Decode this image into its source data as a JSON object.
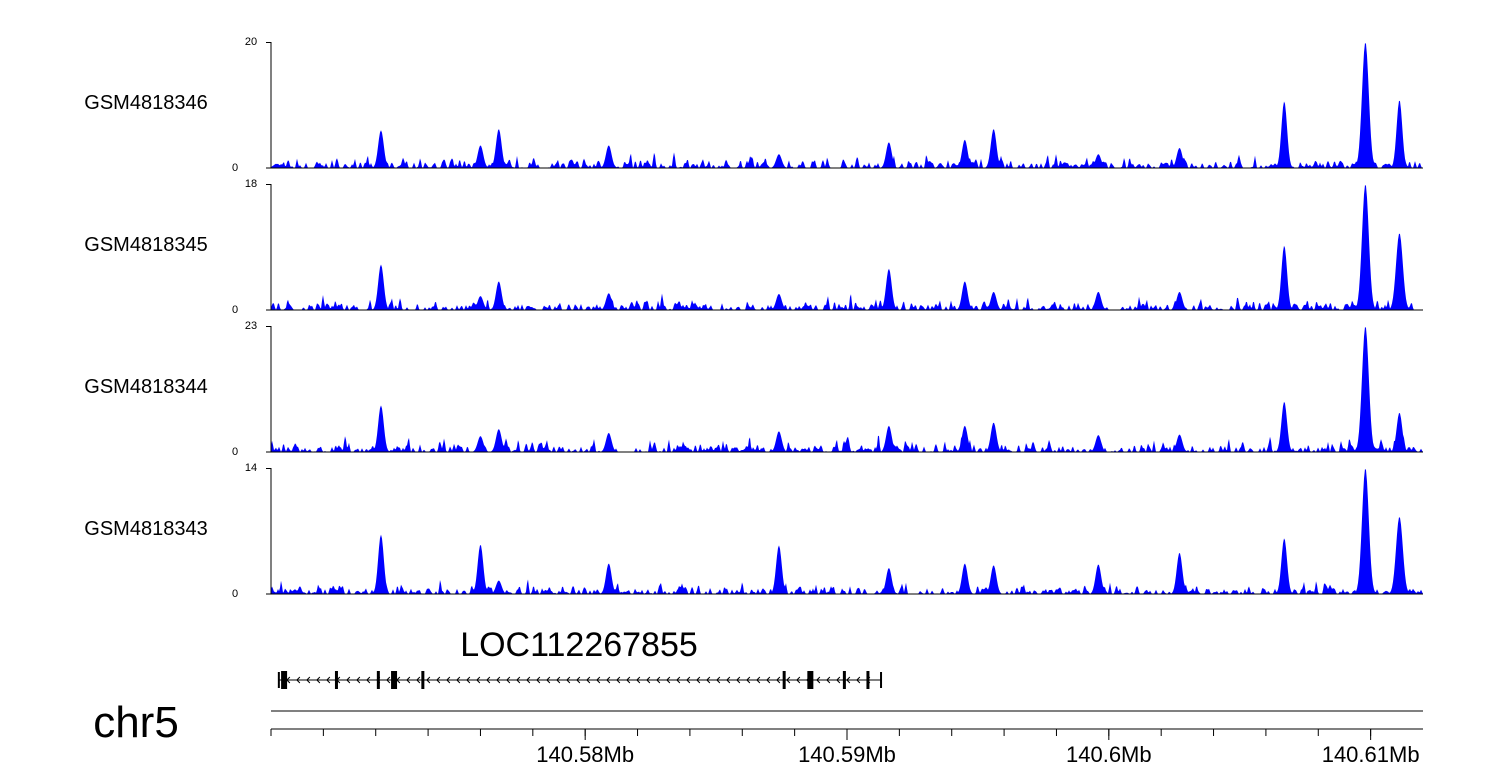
{
  "chart_data": {
    "type": "area",
    "tracks": [
      {
        "name": "GSM4818346",
        "ymax": 20,
        "ymin": 0,
        "peaks": [
          [
            140.5722,
            6
          ],
          [
            140.576,
            3.6
          ],
          [
            140.5767,
            6.2
          ],
          [
            140.5809,
            3.6
          ],
          [
            140.5874,
            2.2
          ],
          [
            140.5916,
            4.1
          ],
          [
            140.5945,
            4.5
          ],
          [
            140.5956,
            6.2
          ],
          [
            140.5996,
            2.2
          ],
          [
            140.6027,
            3.2
          ],
          [
            140.6067,
            10.6
          ],
          [
            140.6098,
            20
          ],
          [
            140.6111,
            10.8
          ]
        ]
      },
      {
        "name": "GSM4818345",
        "ymax": 18,
        "ymin": 0,
        "peaks": [
          [
            140.5722,
            6.5
          ],
          [
            140.576,
            2
          ],
          [
            140.5767,
            4.1
          ],
          [
            140.5809,
            2.4
          ],
          [
            140.5874,
            2.3
          ],
          [
            140.5916,
            5.9
          ],
          [
            140.5945,
            4.1
          ],
          [
            140.5956,
            2.6
          ],
          [
            140.5996,
            2.6
          ],
          [
            140.6027,
            2.6
          ],
          [
            140.6067,
            9.2
          ],
          [
            140.6098,
            18
          ],
          [
            140.6111,
            11
          ]
        ]
      },
      {
        "name": "GSM4818344",
        "ymax": 23,
        "ymin": 0,
        "peaks": [
          [
            140.5722,
            8.5
          ],
          [
            140.576,
            2.9
          ],
          [
            140.5767,
            4.2
          ],
          [
            140.5809,
            3.5
          ],
          [
            140.5874,
            3.8
          ],
          [
            140.5916,
            4.8
          ],
          [
            140.5945,
            4.8
          ],
          [
            140.5956,
            5.4
          ],
          [
            140.5996,
            3.1
          ],
          [
            140.6027,
            3.2
          ],
          [
            140.6067,
            9.2
          ],
          [
            140.6098,
            23
          ],
          [
            140.6111,
            7.2
          ]
        ]
      },
      {
        "name": "GSM4818343",
        "ymax": 14,
        "ymin": 0,
        "peaks": [
          [
            140.5722,
            6.6
          ],
          [
            140.576,
            5.5
          ],
          [
            140.5767,
            1.5
          ],
          [
            140.5809,
            3.4
          ],
          [
            140.5874,
            5.4
          ],
          [
            140.5916,
            2.9
          ],
          [
            140.5945,
            3.4
          ],
          [
            140.5956,
            3.2
          ],
          [
            140.5996,
            3.3
          ],
          [
            140.6027,
            4.6
          ],
          [
            140.6067,
            6.2
          ],
          [
            140.6098,
            14
          ],
          [
            140.6111,
            8.6
          ]
        ]
      }
    ],
    "gene": {
      "name": "LOC112267855",
      "strand": "-",
      "start": 140.5683,
      "end": 140.5913,
      "exons": [
        140.5685,
        140.5705,
        140.5721,
        140.5727,
        140.5738,
        140.5876,
        140.5886,
        140.5899,
        140.5908
      ]
    },
    "chromosome": "chr5",
    "xlabel": "chr5",
    "xlim": [
      140.568,
      140.612
    ],
    "xticks": [
      140.58,
      140.59,
      140.6,
      140.61
    ],
    "xtick_labels": [
      "140.58Mb",
      "140.59Mb",
      "140.6Mb",
      "140.61Mb"
    ],
    "minor_tick_step": 0.002,
    "fill_color": "#0000ff",
    "axis_color": "#000000"
  }
}
